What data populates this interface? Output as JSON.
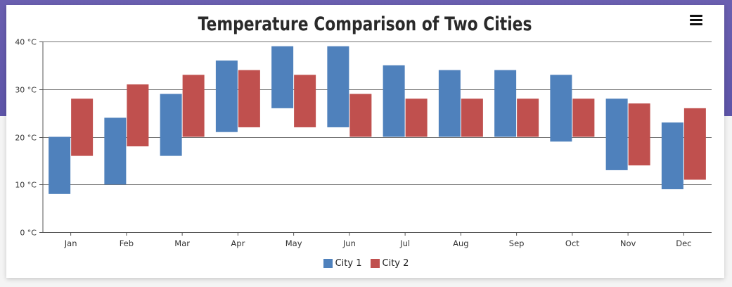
{
  "chart_data": {
    "type": "bar",
    "title": "Temperature Comparison of Two Cities",
    "categories": [
      "Jan",
      "Feb",
      "Mar",
      "Apr",
      "May",
      "Jun",
      "Jul",
      "Aug",
      "Sep",
      "Oct",
      "Nov",
      "Dec"
    ],
    "y_ticks": [
      "0 °C",
      "10 °C",
      "20 °C",
      "30 °C",
      "40 °C"
    ],
    "ylim": [
      0,
      40
    ],
    "grid": true,
    "legend_position": "bottom-center",
    "series": [
      {
        "name": "City 1",
        "color": "#4f81bc",
        "ranges": [
          [
            8,
            20
          ],
          [
            10,
            24
          ],
          [
            16,
            29
          ],
          [
            21,
            36
          ],
          [
            26,
            39
          ],
          [
            22,
            39
          ],
          [
            20,
            35
          ],
          [
            20,
            34
          ],
          [
            20,
            34
          ],
          [
            19,
            33
          ],
          [
            13,
            28
          ],
          [
            9,
            23
          ]
        ]
      },
      {
        "name": "City 2",
        "color": "#c0504e",
        "ranges": [
          [
            16,
            28
          ],
          [
            18,
            31
          ],
          [
            20,
            33
          ],
          [
            22,
            34
          ],
          [
            22,
            33
          ],
          [
            20,
            29
          ],
          [
            20,
            28
          ],
          [
            20,
            28
          ],
          [
            20,
            28
          ],
          [
            20,
            28
          ],
          [
            14,
            27
          ],
          [
            11,
            26
          ]
        ]
      }
    ]
  }
}
